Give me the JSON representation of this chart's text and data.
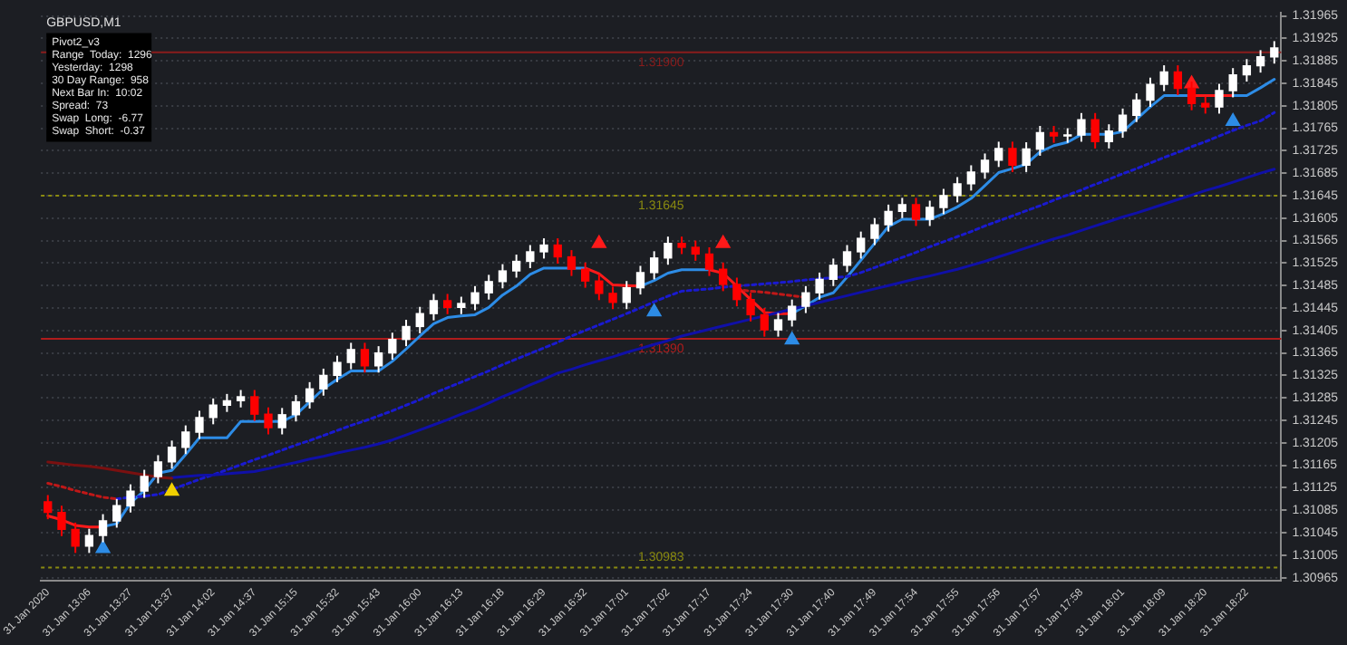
{
  "chart_data": {
    "type": "candlestick",
    "title": "GBPUSD,M1",
    "annotations": [
      "Pivot2_v3",
      "Range  Today:  1296",
      "Yesterday:  1298",
      "30 Day Range:  958",
      "Next Bar In:  10:02",
      "Spread:  73",
      "Swap  Long:  -6.77",
      "Swap  Short:  -0.37"
    ],
    "categories": [
      "31 Jan 2020",
      null,
      null,
      "31 Jan 13:06",
      null,
      null,
      "31 Jan 13:27",
      null,
      null,
      "31 Jan 13:37",
      null,
      null,
      "31 Jan 14:02",
      null,
      null,
      "31 Jan 14:37",
      null,
      null,
      "31 Jan 15:15",
      null,
      null,
      "31 Jan 15:32",
      null,
      null,
      "31 Jan 15:43",
      null,
      null,
      "31 Jan 16:00",
      null,
      null,
      "31 Jan 16:13",
      null,
      null,
      "31 Jan 16:18",
      null,
      null,
      "31 Jan 16:29",
      null,
      null,
      "31 Jan 16:32",
      null,
      null,
      "31 Jan 17:01",
      null,
      null,
      "31 Jan 17:02",
      null,
      null,
      "31 Jan 17:17",
      null,
      null,
      "31 Jan 17:24",
      null,
      null,
      "31 Jan 17:30",
      null,
      null,
      "31 Jan 17:40",
      null,
      null,
      "31 Jan 17:49",
      null,
      null,
      "31 Jan 17:54",
      null,
      null,
      "31 Jan 17:55",
      null,
      null,
      "31 Jan 17:56",
      null,
      null,
      "31 Jan 17:57",
      null,
      null,
      "31 Jan 17:58",
      null,
      null,
      "31 Jan 18:01",
      null,
      null,
      "31 Jan 18:09",
      null,
      null,
      "31 Jan 18:20",
      null,
      null,
      "31 Jan 18:22",
      null,
      null
    ],
    "ohlc": [
      [
        1.311,
        1.31112,
        1.31069,
        1.31081
      ],
      [
        1.31081,
        1.31093,
        1.31039,
        1.31051
      ],
      [
        1.31051,
        1.31063,
        1.31009,
        1.31021
      ],
      [
        1.31021,
        1.31052,
        1.31009,
        1.3104
      ],
      [
        1.3104,
        1.31078,
        1.31028,
        1.31066
      ],
      [
        1.31066,
        1.31105,
        1.31054,
        1.31093
      ],
      [
        1.31093,
        1.31131,
        1.31081,
        1.31119
      ],
      [
        1.31119,
        1.31157,
        1.31107,
        1.31145
      ],
      [
        1.31145,
        1.31183,
        1.31133,
        1.31171
      ],
      [
        1.31171,
        1.31209,
        1.31159,
        1.31197
      ],
      [
        1.31197,
        1.31236,
        1.31185,
        1.31224
      ],
      [
        1.31224,
        1.31262,
        1.31212,
        1.3125
      ],
      [
        1.3125,
        1.31284,
        1.31238,
        1.31272
      ],
      [
        1.31272,
        1.31292,
        1.3126,
        1.3128
      ],
      [
        1.3128,
        1.31299,
        1.31268,
        1.31287
      ],
      [
        1.31287,
        1.31299,
        1.31244,
        1.31256
      ],
      [
        1.31256,
        1.31268,
        1.3122,
        1.31232
      ],
      [
        1.31232,
        1.31267,
        1.3122,
        1.31255
      ],
      [
        1.31255,
        1.3129,
        1.31243,
        1.31278
      ],
      [
        1.31278,
        1.31313,
        1.31266,
        1.31301
      ],
      [
        1.31301,
        1.31337,
        1.31289,
        1.31325
      ],
      [
        1.31325,
        1.3136,
        1.31313,
        1.31348
      ],
      [
        1.31348,
        1.31383,
        1.31336,
        1.31371
      ],
      [
        1.31371,
        1.31383,
        1.3133,
        1.31342
      ],
      [
        1.31342,
        1.31377,
        1.3133,
        1.31365
      ],
      [
        1.31365,
        1.31401,
        1.31353,
        1.31389
      ],
      [
        1.31389,
        1.31424,
        1.31377,
        1.31412
      ],
      [
        1.31412,
        1.31447,
        1.314,
        1.31435
      ],
      [
        1.31435,
        1.3147,
        1.31423,
        1.31458
      ],
      [
        1.31458,
        1.3147,
        1.31434,
        1.31446
      ],
      [
        1.31446,
        1.31465,
        1.31434,
        1.31453
      ],
      [
        1.31453,
        1.31484,
        1.31441,
        1.31472
      ],
      [
        1.31472,
        1.31504,
        1.3146,
        1.31492
      ],
      [
        1.31492,
        1.31523,
        1.3148,
        1.31511
      ],
      [
        1.31511,
        1.3154,
        1.31499,
        1.31528
      ],
      [
        1.31528,
        1.31557,
        1.31516,
        1.31545
      ],
      [
        1.31545,
        1.31569,
        1.31533,
        1.31557
      ],
      [
        1.31557,
        1.31569,
        1.31524,
        1.31536
      ],
      [
        1.31536,
        1.31548,
        1.31502,
        1.31514
      ],
      [
        1.31514,
        1.31526,
        1.31481,
        1.31493
      ],
      [
        1.31493,
        1.31505,
        1.31459,
        1.31471
      ],
      [
        1.31471,
        1.31483,
        1.31443,
        1.31455
      ],
      [
        1.31455,
        1.31493,
        1.31443,
        1.31481
      ],
      [
        1.31481,
        1.3152,
        1.31469,
        1.31508
      ],
      [
        1.31508,
        1.31546,
        1.31496,
        1.31534
      ],
      [
        1.31534,
        1.31572,
        1.31522,
        1.3156
      ],
      [
        1.3156,
        1.31572,
        1.31541,
        1.31553
      ],
      [
        1.31553,
        1.31565,
        1.31529,
        1.31541
      ],
      [
        1.31541,
        1.31553,
        1.31502,
        1.31514
      ],
      [
        1.31514,
        1.31526,
        1.31475,
        1.31487
      ],
      [
        1.31487,
        1.31499,
        1.31448,
        1.3146
      ],
      [
        1.3146,
        1.31472,
        1.31421,
        1.31433
      ],
      [
        1.31433,
        1.31445,
        1.31394,
        1.31406
      ],
      [
        1.31406,
        1.31436,
        1.31394,
        1.31424
      ],
      [
        1.31424,
        1.3146,
        1.31412,
        1.31448
      ],
      [
        1.31448,
        1.31484,
        1.31436,
        1.31472
      ],
      [
        1.31472,
        1.31508,
        1.3146,
        1.31496
      ],
      [
        1.31496,
        1.31533,
        1.31484,
        1.31521
      ],
      [
        1.31521,
        1.31557,
        1.31509,
        1.31545
      ],
      [
        1.31545,
        1.31581,
        1.31533,
        1.31569
      ],
      [
        1.31569,
        1.31605,
        1.31557,
        1.31593
      ],
      [
        1.31593,
        1.31629,
        1.31581,
        1.31617
      ],
      [
        1.31617,
        1.31641,
        1.31605,
        1.31629
      ],
      [
        1.31629,
        1.31641,
        1.31591,
        1.31603
      ],
      [
        1.31603,
        1.31636,
        1.31591,
        1.31624
      ],
      [
        1.31624,
        1.31657,
        1.31612,
        1.31645
      ],
      [
        1.31645,
        1.31678,
        1.31633,
        1.31666
      ],
      [
        1.31666,
        1.31699,
        1.31654,
        1.31687
      ],
      [
        1.31687,
        1.3172,
        1.31675,
        1.31708
      ],
      [
        1.31708,
        1.31741,
        1.31696,
        1.31729
      ],
      [
        1.31729,
        1.31741,
        1.31687,
        1.31699
      ],
      [
        1.31699,
        1.3174,
        1.31687,
        1.31728
      ],
      [
        1.31728,
        1.31769,
        1.31716,
        1.31757
      ],
      [
        1.31757,
        1.31769,
        1.31739,
        1.31751
      ],
      [
        1.31751,
        1.31765,
        1.31739,
        1.31753
      ],
      [
        1.31753,
        1.31792,
        1.31741,
        1.3178
      ],
      [
        1.3178,
        1.31792,
        1.31729,
        1.31741
      ],
      [
        1.31741,
        1.31772,
        1.31729,
        1.3176
      ],
      [
        1.3176,
        1.318,
        1.31748,
        1.31788
      ],
      [
        1.31788,
        1.31827,
        1.31776,
        1.31815
      ],
      [
        1.31815,
        1.31855,
        1.31803,
        1.31843
      ],
      [
        1.31843,
        1.31877,
        1.31831,
        1.31865
      ],
      [
        1.31865,
        1.31877,
        1.31824,
        1.31836
      ],
      [
        1.31836,
        1.31848,
        1.31797,
        1.31809
      ],
      [
        1.31809,
        1.31821,
        1.31791,
        1.31803
      ],
      [
        1.31803,
        1.31844,
        1.31791,
        1.31832
      ],
      [
        1.31832,
        1.31872,
        1.3182,
        1.3186
      ],
      [
        1.3186,
        1.31888,
        1.31848,
        1.31876
      ],
      [
        1.31876,
        1.31904,
        1.31864,
        1.31892
      ],
      [
        1.31892,
        1.3192,
        1.3188,
        1.31908
      ]
    ],
    "colors": [
      "#ff0000",
      "#ff0000",
      "#ff0000",
      "#ffffff",
      "#ffffff",
      "#ffffff",
      "#ffffff",
      "#ffffff",
      "#ffffff",
      "#ffffff",
      "#ffffff",
      "#ffffff",
      "#ffffff",
      "#ffffff",
      "#ffffff",
      "#ff0000",
      "#ff0000",
      "#ffffff",
      "#ffffff",
      "#ffffff",
      "#ffffff",
      "#ffffff",
      "#ffffff",
      "#ff0000",
      "#ffffff",
      "#ffffff",
      "#ffffff",
      "#ffffff",
      "#ffffff",
      "#ff0000",
      "#ffffff",
      "#ffffff",
      "#ffffff",
      "#ffffff",
      "#ffffff",
      "#ffffff",
      "#ffffff",
      "#ff0000",
      "#ff0000",
      "#ff0000",
      "#ff0000",
      "#ff0000",
      "#ffffff",
      "#ffffff",
      "#ffffff",
      "#ffffff",
      "#ff0000",
      "#ff0000",
      "#ff0000",
      "#ff0000",
      "#ff0000",
      "#ff0000",
      "#ff0000",
      "#ffffff",
      "#ffffff",
      "#ffffff",
      "#ffffff",
      "#ffffff",
      "#ffffff",
      "#ffffff",
      "#ffffff",
      "#ffffff",
      "#ffffff",
      "#ff0000",
      "#ffffff",
      "#ffffff",
      "#ffffff",
      "#ffffff",
      "#ffffff",
      "#ffffff",
      "#ff0000",
      "#ffffff",
      "#ffffff",
      "#ff0000",
      "#ffffff",
      "#ffffff",
      "#ff0000",
      "#ffffff",
      "#ffffff",
      "#ffffff",
      "#ffffff",
      "#ffffff",
      "#ff0000",
      "#ff0000",
      "#ff0000",
      "#ffffff",
      "#ffffff",
      "#ffffff",
      "#ffffff",
      "#ffffff"
    ],
    "series": [
      {
        "type": "line",
        "color": "#7a1010",
        "line_style": "solid",
        "values": [
          1.31171,
          1.31168,
          1.31165,
          1.31163,
          1.3116,
          1.31156,
          1.31152,
          1.31148,
          1.31144,
          1.31142,
          null,
          null,
          null,
          null,
          null,
          null,
          null,
          null,
          null,
          null,
          null,
          null,
          null,
          null,
          null,
          null,
          null,
          null,
          null,
          null,
          null,
          null,
          null,
          null,
          null,
          null,
          null,
          null,
          null,
          null,
          null,
          null,
          null,
          null,
          null,
          null,
          null,
          null,
          null,
          null,
          null,
          null,
          null,
          null,
          null,
          null,
          null,
          null,
          null,
          null,
          null,
          null,
          null,
          null,
          null,
          null,
          null,
          null,
          null,
          null,
          null,
          null,
          null,
          null,
          null,
          null,
          null,
          null,
          null,
          null,
          null,
          null,
          null,
          null,
          null,
          null,
          null,
          null,
          null,
          null
        ]
      },
      {
        "type": "line",
        "color": "#1010a8",
        "line_style": "solid",
        "values": [
          null,
          null,
          null,
          null,
          null,
          null,
          null,
          null,
          null,
          1.31143,
          1.31145,
          1.31147,
          1.31148,
          1.3115,
          1.31152,
          1.31154,
          1.31159,
          1.31165,
          1.3117,
          1.31176,
          1.31181,
          1.31187,
          1.31192,
          1.31197,
          1.31203,
          1.3121,
          1.31219,
          1.31228,
          1.31237,
          1.31246,
          1.31256,
          1.31265,
          1.31276,
          1.31287,
          1.31297,
          1.31308,
          1.31318,
          1.31329,
          1.31336,
          1.31344,
          1.31351,
          1.31358,
          1.31366,
          1.31373,
          1.3138,
          1.31387,
          1.31395,
          1.31401,
          1.31407,
          1.31413,
          1.31419,
          1.31425,
          1.31431,
          1.31437,
          1.31443,
          1.31449,
          1.31455,
          1.31461,
          1.31467,
          1.31473,
          1.31479,
          1.31485,
          1.31491,
          1.31497,
          1.31502,
          1.31508,
          1.31514,
          1.31521,
          1.31528,
          1.31536,
          1.31544,
          1.31552,
          1.3156,
          1.31568,
          1.31575,
          1.31583,
          1.31591,
          1.31599,
          1.31607,
          1.31614,
          1.31622,
          1.3163,
          1.31638,
          1.31646,
          1.31654,
          1.31661,
          1.31669,
          1.31677,
          1.31685,
          1.31692
        ]
      },
      {
        "type": "line",
        "color": "#c01818",
        "line_style": "dotted",
        "values": [
          1.31133,
          1.31127,
          1.3112,
          1.31114,
          1.31108,
          1.31105,
          null,
          null,
          null,
          null,
          null,
          null,
          null,
          null,
          null,
          null,
          null,
          null,
          null,
          null,
          null,
          null,
          null,
          null,
          null,
          null,
          null,
          null,
          null,
          null,
          null,
          null,
          null,
          null,
          null,
          null,
          null,
          null,
          null,
          null,
          null,
          null,
          null,
          null,
          null,
          null,
          null,
          null,
          null,
          null,
          1.31478,
          1.31475,
          1.31473,
          1.3147,
          1.31467,
          1.31464,
          null,
          null,
          null,
          null,
          null,
          null,
          null,
          null,
          null,
          null,
          null,
          null,
          null,
          null,
          null,
          null,
          null,
          null,
          null,
          null,
          null,
          null,
          null,
          null,
          null,
          null,
          null,
          null,
          null,
          null,
          null,
          null,
          null,
          null
        ]
      },
      {
        "type": "line",
        "color": "#1a1ad0",
        "line_style": "dotted",
        "values": [
          null,
          null,
          null,
          null,
          null,
          1.31105,
          1.31108,
          1.3111,
          1.31113,
          1.31122,
          1.31131,
          1.3114,
          1.31148,
          1.31157,
          1.31166,
          1.31175,
          1.31183,
          1.31192,
          1.31201,
          1.31209,
          1.31218,
          1.31227,
          1.31236,
          1.31244,
          1.31253,
          1.31262,
          1.31272,
          1.31282,
          1.31293,
          1.31303,
          1.31313,
          1.31323,
          1.31333,
          1.31344,
          1.31354,
          1.31364,
          1.31374,
          1.31384,
          1.31395,
          1.31405,
          1.31415,
          1.31425,
          1.31435,
          1.31445,
          1.31456,
          1.31466,
          1.31475,
          1.31477,
          1.31479,
          1.31482,
          1.31484,
          1.31486,
          1.31488,
          1.3149,
          1.31492,
          1.31495,
          1.31497,
          1.31499,
          1.31501,
          1.31508,
          1.31517,
          1.31526,
          1.31535,
          1.31544,
          1.31554,
          1.31563,
          1.31572,
          1.31581,
          1.31591,
          1.316,
          1.31609,
          1.31618,
          1.31627,
          1.31637,
          1.31646,
          1.31655,
          1.31665,
          1.31674,
          1.31684,
          1.31693,
          1.31703,
          1.31713,
          1.31722,
          1.31732,
          1.31741,
          1.31751,
          1.31761,
          1.3177,
          1.31778,
          1.31793
        ]
      },
      {
        "type": "line",
        "color": "#2d8ce6",
        "line_style": "solid",
        "values": [
          null,
          null,
          null,
          null,
          1.31056,
          1.31061,
          1.31098,
          1.3112,
          1.31151,
          1.31156,
          1.31184,
          1.31214,
          1.31214,
          1.31214,
          1.31243,
          1.31243,
          1.31243,
          1.31243,
          1.31255,
          1.31278,
          1.31301,
          1.31318,
          1.31333,
          1.31333,
          1.31333,
          1.3135,
          1.31372,
          1.31395,
          1.31417,
          1.31428,
          1.31431,
          1.31433,
          1.31446,
          1.31468,
          1.31484,
          1.31505,
          1.31516,
          1.31516,
          1.31516,
          1.31516,
          null,
          null,
          null,
          1.31484,
          1.31494,
          1.31507,
          1.31513,
          1.31513,
          1.31513,
          null,
          null,
          null,
          null,
          null,
          1.31435,
          1.31449,
          1.31464,
          1.31472,
          1.315,
          1.3153,
          1.3156,
          1.3159,
          1.31603,
          1.31603,
          1.31603,
          1.31613,
          1.31625,
          1.3164,
          1.31663,
          1.31686,
          1.31693,
          1.31701,
          1.31723,
          1.31734,
          1.3174,
          1.31754,
          1.31754,
          1.31754,
          1.31759,
          1.31781,
          1.31803,
          1.31823,
          1.31823,
          1.31823,
          null,
          null,
          1.31823,
          1.31823,
          1.31837,
          1.31852
        ]
      },
      {
        "type": "line",
        "color": "#ff1a1a",
        "line_style": "solid",
        "values": [
          1.31075,
          1.31068,
          1.31058,
          1.31055,
          1.31055,
          null,
          null,
          null,
          null,
          null,
          null,
          null,
          null,
          null,
          null,
          null,
          null,
          null,
          null,
          null,
          null,
          null,
          null,
          null,
          null,
          null,
          null,
          null,
          null,
          null,
          null,
          null,
          null,
          null,
          null,
          null,
          null,
          null,
          null,
          1.31516,
          1.31506,
          1.31486,
          1.31485,
          1.31484,
          null,
          null,
          null,
          null,
          1.31513,
          1.31507,
          1.31484,
          1.3146,
          1.31437,
          1.31435,
          1.31435,
          null,
          null,
          null,
          null,
          null,
          null,
          null,
          null,
          null,
          null,
          null,
          null,
          null,
          null,
          null,
          null,
          null,
          null,
          null,
          null,
          null,
          null,
          null,
          null,
          null,
          null,
          null,
          null,
          1.31823,
          1.31823,
          1.31823,
          1.31823,
          null,
          null,
          null
        ]
      },
      {
        "type": "scatter",
        "color": "#2d8ce6",
        "marker": "triangle",
        "values": [
          null,
          null,
          null,
          null,
          1.31017,
          null,
          null,
          null,
          null,
          null,
          null,
          null,
          null,
          null,
          null,
          null,
          null,
          null,
          null,
          null,
          null,
          null,
          null,
          null,
          null,
          null,
          null,
          null,
          null,
          null,
          null,
          null,
          null,
          null,
          null,
          null,
          null,
          null,
          null,
          null,
          null,
          null,
          null,
          null,
          1.31438,
          null,
          null,
          null,
          null,
          null,
          null,
          null,
          null,
          null,
          1.31388,
          null,
          null,
          null,
          null,
          null,
          null,
          null,
          null,
          null,
          null,
          null,
          null,
          null,
          null,
          null,
          null,
          null,
          null,
          null,
          null,
          null,
          null,
          null,
          null,
          null,
          null,
          null,
          null,
          null,
          null,
          null,
          1.31777,
          null,
          null,
          null
        ]
      },
      {
        "type": "scatter",
        "color": "#ff1a1a",
        "marker": "triangle",
        "values": [
          null,
          null,
          null,
          null,
          null,
          null,
          null,
          null,
          null,
          null,
          null,
          null,
          null,
          null,
          null,
          null,
          null,
          null,
          null,
          null,
          null,
          null,
          null,
          null,
          null,
          null,
          null,
          null,
          null,
          null,
          null,
          null,
          null,
          null,
          null,
          null,
          null,
          null,
          null,
          null,
          1.3156,
          null,
          null,
          null,
          null,
          null,
          null,
          null,
          null,
          1.3156,
          null,
          null,
          null,
          null,
          null,
          null,
          null,
          null,
          null,
          null,
          null,
          null,
          null,
          null,
          null,
          null,
          null,
          null,
          null,
          null,
          null,
          null,
          null,
          null,
          null,
          null,
          null,
          null,
          null,
          null,
          null,
          null,
          null,
          1.31844,
          null,
          null,
          null,
          null,
          null,
          null
        ]
      },
      {
        "type": "scatter",
        "color": "#f0d000",
        "marker": "triangle",
        "values": [
          null,
          null,
          null,
          null,
          null,
          null,
          null,
          null,
          null,
          1.31119,
          null,
          null,
          null,
          null,
          null,
          null,
          null,
          null,
          null,
          null,
          null,
          null,
          null,
          null,
          null,
          null,
          null,
          null,
          null,
          null,
          null,
          null,
          null,
          null,
          null,
          null,
          null,
          null,
          null,
          null,
          null,
          null,
          null,
          null,
          null,
          null,
          null,
          null,
          null,
          null,
          null,
          null,
          null,
          null,
          null,
          null,
          null,
          null,
          null,
          null,
          null,
          null,
          null,
          null,
          null,
          null,
          null,
          null,
          null,
          null,
          null,
          null,
          null,
          null,
          null,
          null,
          null,
          null,
          null,
          null,
          null,
          null,
          null,
          null,
          null,
          null,
          null,
          null,
          null,
          null
        ]
      }
    ],
    "ref_lines": [
      {
        "axis": "y",
        "value": 1.319,
        "label": "1.31900",
        "color": "#8a1c1c",
        "line_style": "solid"
      },
      {
        "axis": "y",
        "value": 1.31645,
        "label": "1.31645",
        "color": "#8a8a10",
        "line_style": "dotted"
      },
      {
        "axis": "y",
        "value": 1.3139,
        "label": "1.31390",
        "color": "#b01c1c",
        "line_style": "solid"
      },
      {
        "axis": "y",
        "value": 1.30983,
        "label": "1.30983",
        "color": "#8a8a10",
        "line_style": "dotted"
      }
    ],
    "ylim": [
      1.3096,
      1.3197
    ],
    "yticks": [
      1.30965,
      1.31005,
      1.31045,
      1.31085,
      1.31125,
      1.31165,
      1.31205,
      1.31245,
      1.31285,
      1.31325,
      1.31365,
      1.31405,
      1.31445,
      1.31485,
      1.31525,
      1.31565,
      1.31605,
      1.31645,
      1.31685,
      1.31725,
      1.31765,
      1.31805,
      1.31845,
      1.31885,
      1.31925,
      1.31965
    ],
    "grid": "y"
  }
}
